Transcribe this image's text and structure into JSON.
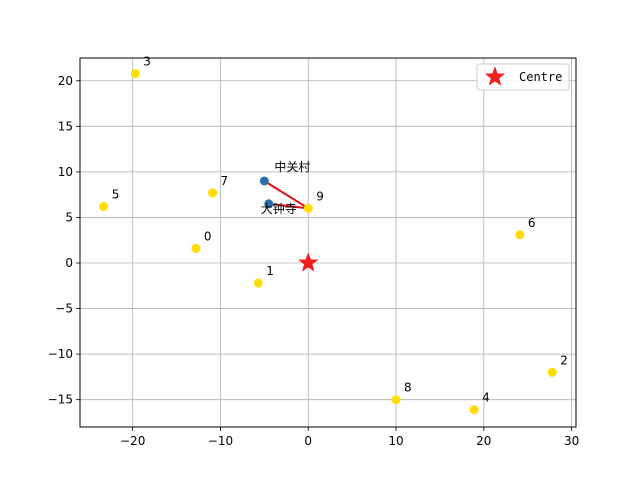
{
  "chart_data": {
    "type": "scatter",
    "title": "",
    "xlabel": "",
    "ylabel": "",
    "xlim": [
      -26,
      30.5
    ],
    "ylim": [
      -18,
      22.5
    ],
    "xticks": [
      -20,
      -10,
      0,
      10,
      20,
      30
    ],
    "yticks": [
      -15,
      -10,
      -5,
      0,
      5,
      10,
      15,
      20
    ],
    "xtick_labels": [
      "−20",
      "−10",
      "0",
      "10",
      "20",
      "30"
    ],
    "ytick_labels": [
      "−15",
      "−10",
      "−5",
      "0",
      "5",
      "10",
      "15",
      "20"
    ],
    "grid": true,
    "legend_position": "top-right",
    "colors": {
      "points": "#ffdd00",
      "landmarks": "#2c6fb0",
      "route": "#e01010",
      "centre": "#ee2020",
      "grid": "#b0b0b0"
    },
    "points": [
      {
        "label": "0",
        "x": -12.8,
        "y": 1.6
      },
      {
        "label": "1",
        "x": -5.7,
        "y": -2.2
      },
      {
        "label": "2",
        "x": 27.8,
        "y": -12.0
      },
      {
        "label": "3",
        "x": -19.7,
        "y": 20.8
      },
      {
        "label": "4",
        "x": 18.9,
        "y": -16.1
      },
      {
        "label": "5",
        "x": -23.3,
        "y": 6.2
      },
      {
        "label": "6",
        "x": 24.1,
        "y": 3.1
      },
      {
        "label": "7",
        "x": -10.9,
        "y": 7.7
      },
      {
        "label": "8",
        "x": 10.0,
        "y": -15.0
      },
      {
        "label": "9",
        "x": 0.0,
        "y": 6.0
      }
    ],
    "landmarks": [
      {
        "label": "中关村",
        "x": -5.0,
        "y": 9.0
      },
      {
        "label": "大钟寺",
        "x": -4.5,
        "y": 6.5
      }
    ],
    "route": [
      {
        "x": -5.0,
        "y": 9.0
      },
      {
        "x": 0.0,
        "y": 6.0
      },
      {
        "x": -4.5,
        "y": 6.5
      }
    ],
    "centre": {
      "x": 0.0,
      "y": 0.0
    },
    "legend": [
      {
        "label": "Centre",
        "marker": "star"
      }
    ]
  }
}
